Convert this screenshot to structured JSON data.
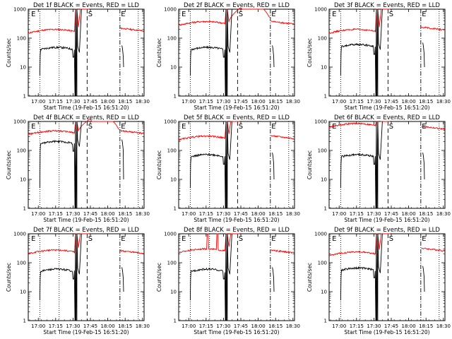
{
  "chart_data": {
    "type": "line",
    "layout": "3x3 grid",
    "y_scale": "log",
    "ylim": [
      1,
      1000
    ],
    "yticks": [
      "1",
      "10",
      "100",
      "1000"
    ],
    "ylabel": "Counts/sec",
    "xlabel": "Start Time (19-Feb-15 16:51:20)",
    "xlim_seconds_from_start": [
      0,
      6000
    ],
    "xtick_labels": [
      "17:00",
      "17:15",
      "17:30",
      "17:45",
      "18:00",
      "18:15",
      "18:30"
    ],
    "series_colors": {
      "events": "#000000",
      "lld": "#ff0000"
    },
    "annotations": [
      "E",
      "S",
      "E"
    ],
    "panels": [
      {
        "title": "Det 1f BLACK = Events, RED = LLD",
        "lld_level": 160,
        "events_level": 40,
        "lld_saturates": false,
        "lld_after": 220,
        "lld_spikes": false
      },
      {
        "title": "Det 2f BLACK = Events, RED = LLD",
        "lld_level": 300,
        "events_level": 40,
        "lld_saturates": true,
        "lld_after": 380,
        "lld_spikes": false
      },
      {
        "title": "Det 3f BLACK = Events, RED = LLD",
        "lld_level": 160,
        "events_level": 50,
        "lld_saturates": false,
        "lld_after": 240,
        "lld_spikes": false
      },
      {
        "title": "Det 4f BLACK = Events, RED = LLD",
        "lld_level": 380,
        "events_level": 170,
        "lld_saturates": true,
        "lld_after": 480,
        "lld_spikes": false
      },
      {
        "title": "Det 5f BLACK = Events, RED = LLD",
        "lld_level": 250,
        "events_level": 60,
        "lld_saturates": false,
        "lld_after": 320,
        "lld_spikes": false
      },
      {
        "title": "Det 6f BLACK = Events, RED = LLD",
        "lld_level": 680,
        "events_level": 60,
        "lld_saturates": false,
        "lld_after": 680,
        "lld_spikes": false
      },
      {
        "title": "Det 7f BLACK = Events, RED = LLD",
        "lld_level": 220,
        "events_level": 50,
        "lld_saturates": false,
        "lld_after": 260,
        "lld_spikes": false
      },
      {
        "title": "Det 8f BLACK = Events, RED = LLD",
        "lld_level": 240,
        "events_level": 50,
        "lld_saturates": false,
        "lld_after": 270,
        "lld_spikes": true
      },
      {
        "title": "Det 9f BLACK = Events, RED = LLD",
        "lld_level": 190,
        "events_level": 55,
        "lld_saturates": false,
        "lld_after": 320,
        "lld_spikes": false
      }
    ]
  }
}
